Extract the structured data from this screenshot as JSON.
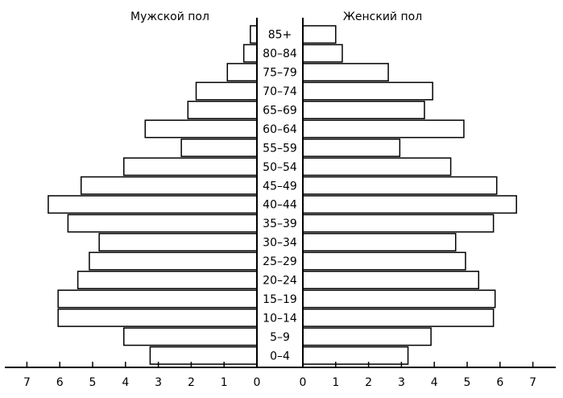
{
  "chart_data": {
    "type": "bar",
    "orientation": "horizontal-population-pyramid",
    "categories": [
      "0–4",
      "5–9",
      "10–14",
      "15–19",
      "20–24",
      "25–29",
      "30–34",
      "35–39",
      "40–44",
      "45–49",
      "50–54",
      "55–59",
      "60–64",
      "65–69",
      "70–74",
      "75–79",
      "80–84",
      "85+"
    ],
    "series": [
      {
        "name": "Мужской пол",
        "values": [
          3.25,
          4.05,
          6.05,
          6.05,
          5.45,
          5.1,
          4.8,
          5.75,
          6.35,
          5.35,
          4.05,
          2.3,
          3.4,
          2.1,
          1.85,
          0.9,
          0.4,
          0.2
        ]
      },
      {
        "name": "Женский пол",
        "values": [
          3.2,
          3.9,
          5.8,
          5.85,
          5.35,
          4.95,
          4.65,
          5.8,
          6.5,
          5.9,
          4.5,
          2.95,
          4.9,
          3.7,
          3.95,
          2.6,
          1.2,
          1.0
        ]
      }
    ],
    "left_title": "Мужской пол",
    "right_title": "Женский пол",
    "left_ticks": [
      "7",
      "6",
      "5",
      "4",
      "3",
      "2",
      "1",
      "0"
    ],
    "right_ticks": [
      "0",
      "1",
      "2",
      "3",
      "4",
      "5",
      "6",
      "7"
    ],
    "xlim": [
      0,
      7
    ],
    "grid": false,
    "colors": {
      "bar_fill": "#ffffff",
      "bar_stroke": "#000000"
    }
  }
}
